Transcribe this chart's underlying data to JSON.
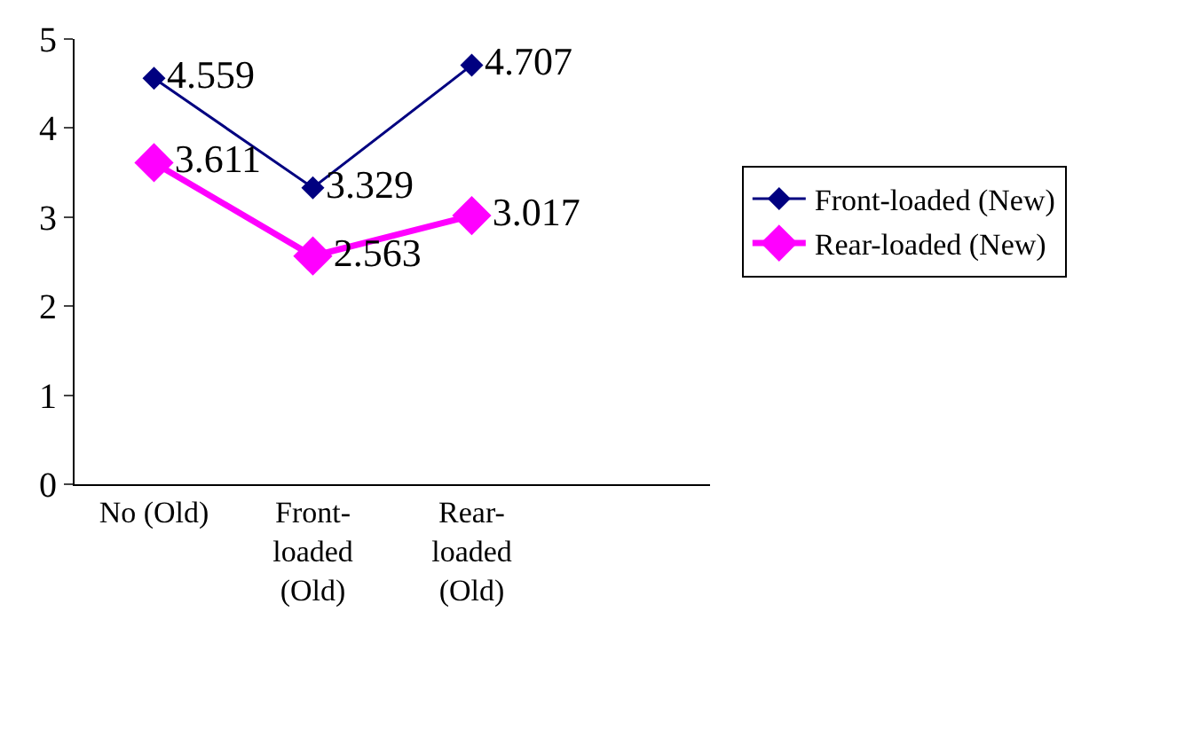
{
  "chart_data": {
    "type": "line",
    "categories": [
      "No (Old)",
      "Front-loaded (Old)",
      "Rear-loaded (Old)",
      null
    ],
    "series": [
      {
        "name": "Front-loaded (New)",
        "color": "#000080",
        "values": [
          4.559,
          3.329,
          4.707,
          null
        ]
      },
      {
        "name": "Rear-loaded (New)",
        "color": "#ff00ff",
        "values": [
          3.611,
          2.563,
          3.017,
          null
        ]
      }
    ],
    "ylim": [
      0,
      5
    ],
    "yticks": [
      0,
      1,
      2,
      3,
      4,
      5
    ],
    "legend": "right",
    "marker": "diamond",
    "line_style": "solid",
    "data_labels": true
  }
}
